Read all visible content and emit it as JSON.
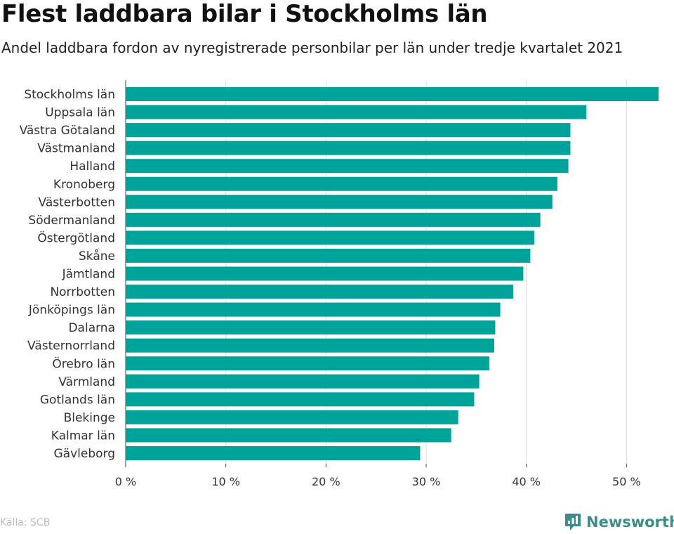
{
  "header": {
    "title": "Flest laddbara bilar i Stockholms län",
    "subtitle": "Andel laddbara fordon av nyregistrerade personbilar per län under tredje kvartalet 2021"
  },
  "footer": {
    "source": "Källa: SCB",
    "brand": "Newsworthy",
    "brand_icon": "bar-chart-logo-icon"
  },
  "colors": {
    "bar": "#00a39a",
    "grid": "#dddddd",
    "axis_text": "#333333",
    "brand": "#3a8f8b"
  },
  "chart_data": {
    "type": "bar",
    "orientation": "horizontal",
    "title": "Flest laddbara bilar i Stockholms län",
    "subtitle": "Andel laddbara fordon av nyregistrerade personbilar per län under tredje kvartalet 2021",
    "xlabel": "",
    "ylabel": "",
    "categories": [
      "Stockholms län",
      "Uppsala län",
      "Västra Götaland",
      "Västmanland",
      "Halland",
      "Kronoberg",
      "Västerbotten",
      "Södermanland",
      "Östergötland",
      "Skåne",
      "Jämtland",
      "Norrbotten",
      "Jönköpings län",
      "Dalarna",
      "Västernorrland",
      "Örebro län",
      "Värmland",
      "Gotlands län",
      "Blekinge",
      "Kalmar län",
      "Gävleborg"
    ],
    "values": [
      53.2,
      46.0,
      44.4,
      44.4,
      44.2,
      43.1,
      42.6,
      41.4,
      40.8,
      40.4,
      39.7,
      38.7,
      37.4,
      36.9,
      36.8,
      36.3,
      35.3,
      34.8,
      33.2,
      32.5,
      29.4
    ],
    "xlim": [
      0,
      53.2
    ],
    "xticks": [
      0,
      10,
      20,
      30,
      40,
      50
    ],
    "xtick_labels": [
      "0 %",
      "10 %",
      "20 %",
      "30 %",
      "40 %",
      "50 %"
    ],
    "grid": true,
    "legend": "none"
  }
}
